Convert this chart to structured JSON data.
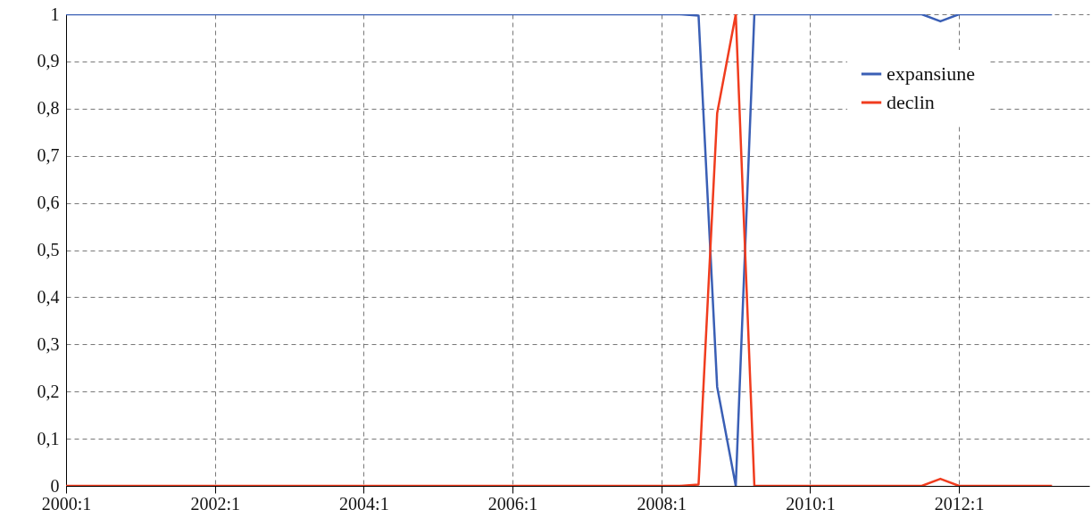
{
  "chart_data": {
    "type": "line",
    "categories": [
      "2000:1",
      null,
      null,
      null,
      null,
      null,
      null,
      null,
      "2002:1",
      null,
      null,
      null,
      null,
      null,
      null,
      null,
      "2004:1",
      null,
      null,
      null,
      null,
      null,
      null,
      null,
      "2006:1",
      null,
      null,
      null,
      null,
      null,
      null,
      null,
      "2008:1",
      null,
      null,
      null,
      null,
      null,
      null,
      null,
      "2010:1",
      null,
      null,
      null,
      null,
      null,
      null,
      null,
      "2012:1",
      null,
      null,
      null,
      null,
      null
    ],
    "series": [
      {
        "name": "expansiune",
        "color": "#3a5fb5",
        "values": [
          1,
          1,
          1,
          1,
          1,
          1,
          1,
          1,
          1,
          1,
          1,
          1,
          1,
          1,
          1,
          1,
          1,
          1,
          1,
          1,
          1,
          1,
          1,
          1,
          1,
          1,
          1,
          1,
          1,
          1,
          1,
          1,
          1,
          1,
          0.997,
          0.21,
          0,
          1,
          1,
          1,
          1,
          1,
          1,
          1,
          1,
          1,
          1,
          0.985,
          1,
          1,
          1,
          1,
          1,
          1
        ]
      },
      {
        "name": "declin",
        "color": "#f03c1e",
        "values": [
          0,
          0,
          0,
          0,
          0,
          0,
          0,
          0,
          0,
          0,
          0,
          0,
          0,
          0,
          0,
          0,
          0,
          0,
          0,
          0,
          0,
          0,
          0,
          0,
          0,
          0,
          0,
          0,
          0,
          0,
          0,
          0,
          0,
          0,
          0.003,
          0.79,
          1,
          0,
          0,
          0,
          0,
          0,
          0,
          0,
          0,
          0,
          0,
          0.015,
          0,
          0,
          0,
          0,
          0,
          0
        ]
      }
    ],
    "ylim": [
      0,
      1
    ],
    "yticks": [
      0,
      {
        "value": 0.1,
        "label": "0,1"
      },
      {
        "value": 0.2,
        "label": "0,2"
      },
      {
        "value": 0.3,
        "label": "0,3"
      },
      {
        "value": 0.4,
        "label": "0,4"
      },
      {
        "value": 0.5,
        "label": "0,5"
      },
      {
        "value": 0.6,
        "label": "0,6"
      },
      {
        "value": 0.7,
        "label": "0,7"
      },
      {
        "value": 0.8,
        "label": "0,8"
      },
      {
        "value": 0.9,
        "label": "0,9"
      },
      1
    ],
    "grid": true,
    "legend": "top right",
    "line_style": "solid",
    "marker": "none"
  }
}
